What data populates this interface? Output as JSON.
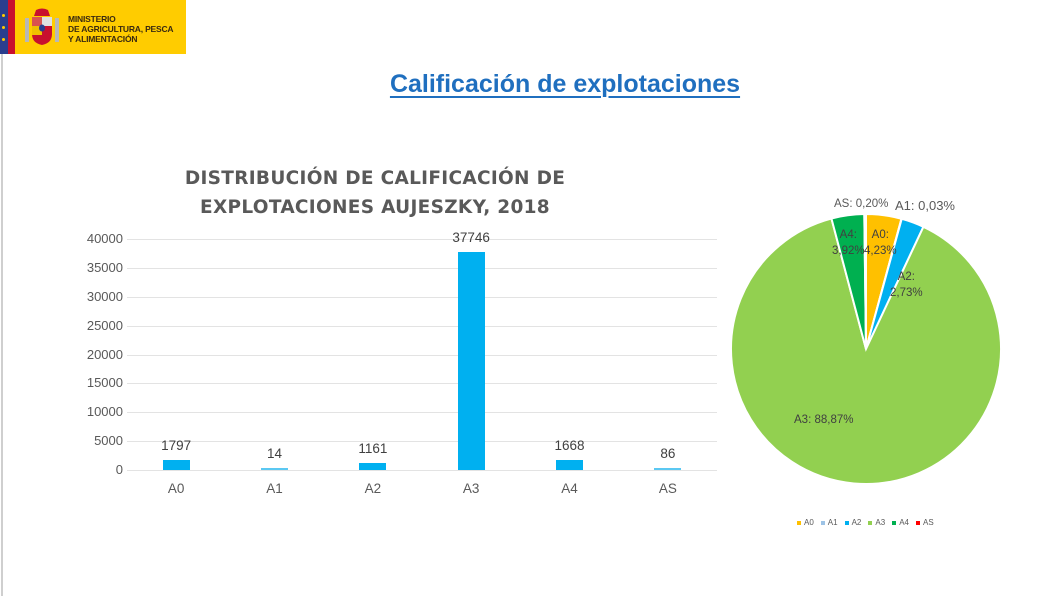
{
  "header": {
    "logo_text": "MINISTERIO\nDE AGRICULTURA, PESCA\nY ALIMENTACIÓN",
    "page_title": "Calificación de explotaciones"
  },
  "colors": {
    "title_blue": "#1f6fbf",
    "bar": "#00b0f0",
    "A0": "#ffc000",
    "A1": "#9dc3e6",
    "A2": "#00b0f0",
    "A3": "#92d050",
    "A4": "#00b050",
    "AS": "#ff0000"
  },
  "chart_data": [
    {
      "type": "bar",
      "title": "DISTRIBUCIÓN DE CALIFICACIÓN DE EXPLOTACIONES AUJESZKY, 2018",
      "title_lines": [
        "DISTRIBUCIÓN DE CALIFICACIÓN DE",
        "EXPLOTACIONES AUJESZKY, 2018"
      ],
      "categories": [
        "A0",
        "A1",
        "A2",
        "A3",
        "A4",
        "AS"
      ],
      "values": [
        1797,
        14,
        1161,
        37746,
        1668,
        86
      ],
      "value_labels": [
        "1797",
        "14",
        "1161",
        "37746",
        "1668",
        "86"
      ],
      "yticks": [
        "40000",
        "35000",
        "30000",
        "25000",
        "20000",
        "15000",
        "10000",
        "5000",
        "0"
      ],
      "ylim": [
        0,
        40000
      ],
      "xlabel": "",
      "ylabel": "",
      "grid": true,
      "legend": "none"
    },
    {
      "type": "pie",
      "title": "",
      "categories": [
        "A0",
        "A1",
        "A2",
        "A3",
        "A4",
        "AS"
      ],
      "values": [
        4.23,
        0.03,
        2.73,
        88.87,
        3.92,
        0.2
      ],
      "data_labels": [
        "A0: 4,23%",
        "A1: 0,03%",
        "A2: 2,73%",
        "A3: 88,87%",
        "A4: 3,92%",
        "AS: 0,20%"
      ],
      "legend_position": "bottom",
      "legend": [
        "A0",
        "A1",
        "A2",
        "A3",
        "A4",
        "AS"
      ]
    }
  ]
}
